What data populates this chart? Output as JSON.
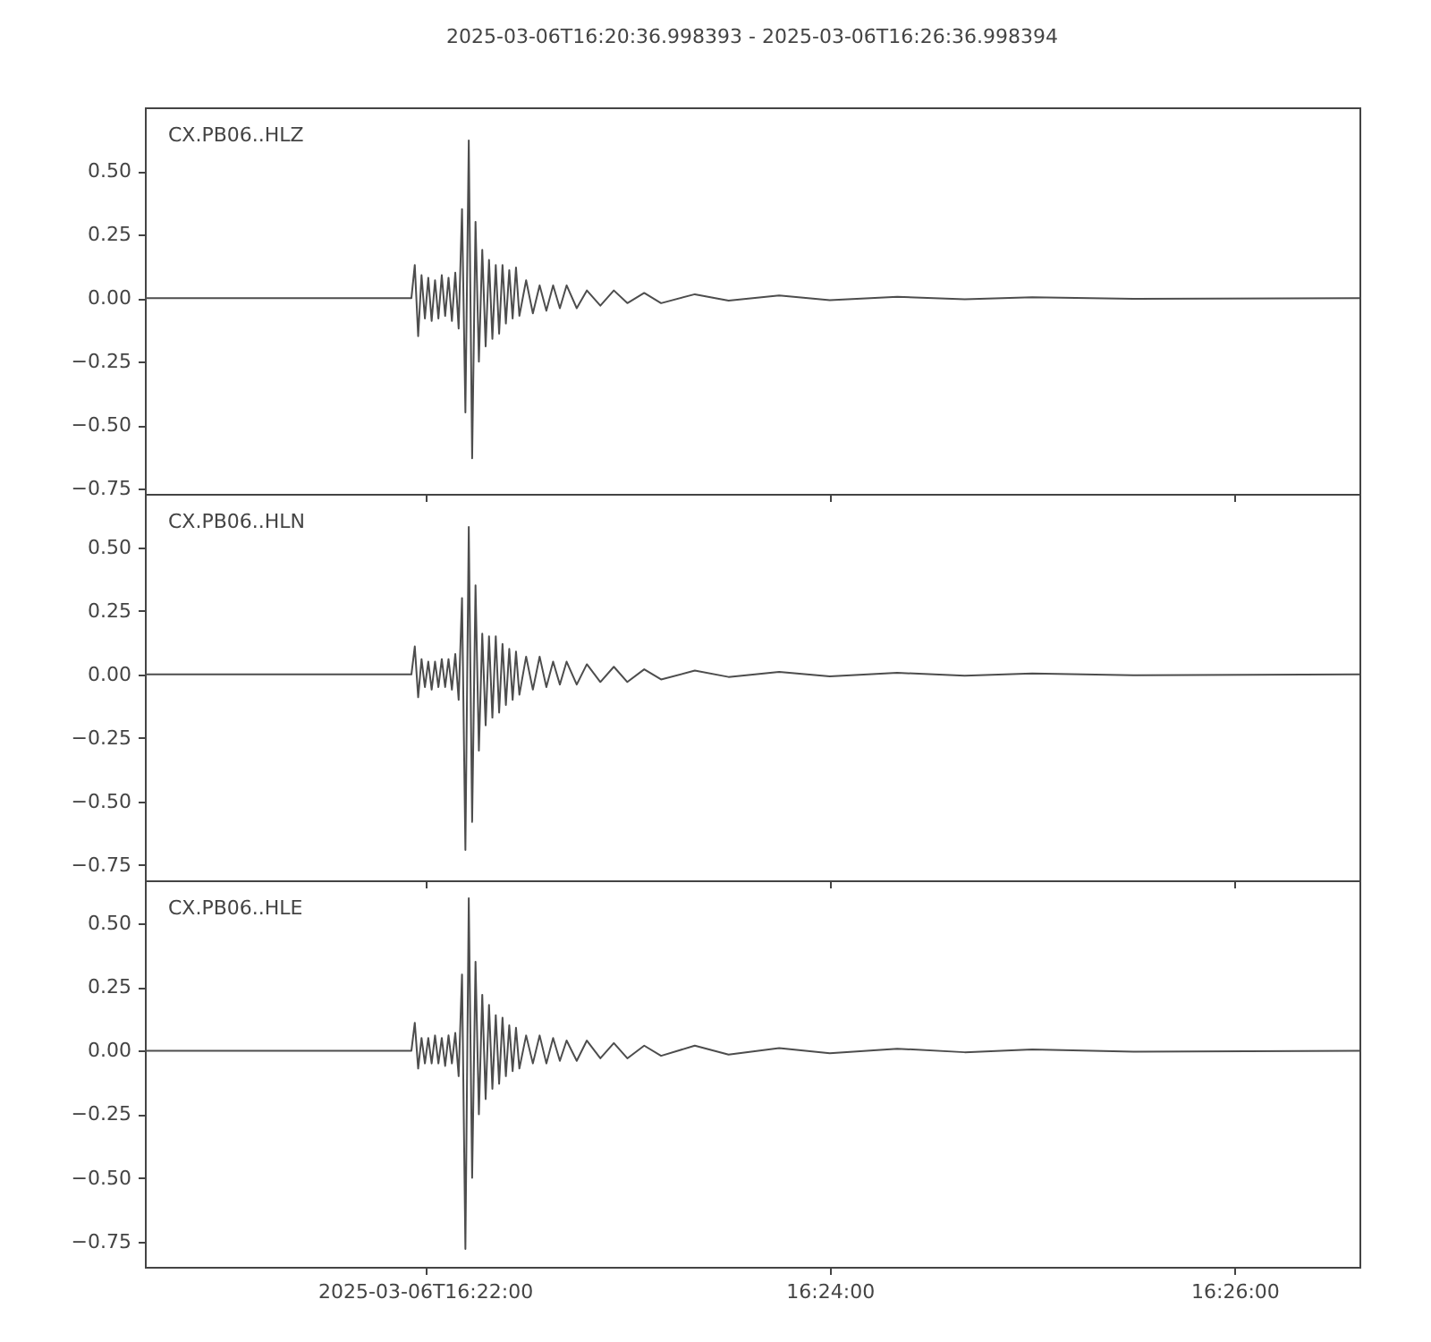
{
  "chart_data": [
    {
      "type": "line",
      "title": "2025-03-06T16:20:36.998393  -  2025-03-06T16:26:36.998394",
      "annotations": [
        "CX.PB06..HLZ"
      ],
      "color": "#4d4d4d",
      "tick_labels": "y",
      "xlim": [
        "2025-03-06T16:20:37",
        "2025-03-06T16:26:37"
      ],
      "xticks": [
        {
          "value": "2025-03-06T16:22:00",
          "label": null
        },
        {
          "value": "2025-03-06T16:24:00",
          "label": null
        },
        {
          "value": "2025-03-06T16:26:00",
          "label": null
        }
      ],
      "ylim": [
        -0.77,
        0.75
      ],
      "yticks": [
        {
          "value": -0.75,
          "label": "−0.75"
        },
        {
          "value": -0.5,
          "label": "−0.50"
        },
        {
          "value": -0.25,
          "label": "−0.25"
        },
        {
          "value": 0,
          "label": "0.00"
        },
        {
          "value": 0.25,
          "label": "0.25"
        },
        {
          "value": 0.5,
          "label": "0.50"
        }
      ],
      "x": [
        "2025-03-06T16:20:37",
        "2025-03-06T16:21:56",
        "2025-03-06T16:21:57",
        "2025-03-06T16:21:58",
        "2025-03-06T16:21:59",
        "2025-03-06T16:22:00",
        "2025-03-06T16:22:01",
        "2025-03-06T16:22:02",
        "2025-03-06T16:22:03",
        "2025-03-06T16:22:04",
        "2025-03-06T16:22:05",
        "2025-03-06T16:22:06",
        "2025-03-06T16:22:07",
        "2025-03-06T16:22:08",
        "2025-03-06T16:22:09",
        "2025-03-06T16:22:10",
        "2025-03-06T16:22:11",
        "2025-03-06T16:22:12",
        "2025-03-06T16:22:13",
        "2025-03-06T16:22:14",
        "2025-03-06T16:22:15",
        "2025-03-06T16:22:16",
        "2025-03-06T16:22:17",
        "2025-03-06T16:22:18",
        "2025-03-06T16:22:19",
        "2025-03-06T16:22:20",
        "2025-03-06T16:22:21",
        "2025-03-06T16:22:22",
        "2025-03-06T16:22:23",
        "2025-03-06T16:22:24",
        "2025-03-06T16:22:25",
        "2025-03-06T16:22:26",
        "2025-03-06T16:22:27",
        "2025-03-06T16:22:28",
        "2025-03-06T16:22:30",
        "2025-03-06T16:22:32",
        "2025-03-06T16:22:34",
        "2025-03-06T16:22:36",
        "2025-03-06T16:22:38",
        "2025-03-06T16:22:40",
        "2025-03-06T16:22:42",
        "2025-03-06T16:22:45",
        "2025-03-06T16:22:48",
        "2025-03-06T16:22:52",
        "2025-03-06T16:22:56",
        "2025-03-06T16:23:00",
        "2025-03-06T16:23:05",
        "2025-03-06T16:23:10",
        "2025-03-06T16:23:20",
        "2025-03-06T16:23:30",
        "2025-03-06T16:23:45",
        "2025-03-06T16:24:00",
        "2025-03-06T16:24:20",
        "2025-03-06T16:24:40",
        "2025-03-06T16:25:00",
        "2025-03-06T16:25:30",
        "2025-03-06T16:26:37"
      ],
      "values": [
        0,
        0,
        0.13,
        -0.15,
        0.09,
        -0.08,
        0.08,
        -0.09,
        0.07,
        -0.08,
        0.09,
        -0.07,
        0.08,
        -0.09,
        0.1,
        -0.12,
        0.35,
        -0.45,
        0.62,
        -0.63,
        0.3,
        -0.25,
        0.19,
        -0.19,
        0.15,
        -0.16,
        0.13,
        -0.14,
        0.13,
        -0.1,
        0.11,
        -0.08,
        0.12,
        -0.07,
        0.07,
        -0.06,
        0.05,
        -0.05,
        0.05,
        -0.04,
        0.05,
        -0.04,
        0.03,
        -0.03,
        0.03,
        -0.02,
        0.02,
        -0.02,
        0.015,
        -0.01,
        0.01,
        -0.008,
        0.005,
        -0.005,
        0.003,
        -0.003,
        0
      ]
    },
    {
      "type": "line",
      "annotations": [
        "CX.PB06..HLN"
      ],
      "color": "#4d4d4d",
      "tick_labels": "y",
      "xlim": [
        "2025-03-06T16:20:37",
        "2025-03-06T16:26:37"
      ],
      "xticks": [
        {
          "value": "2025-03-06T16:22:00",
          "label": null
        },
        {
          "value": "2025-03-06T16:24:00",
          "label": null
        },
        {
          "value": "2025-03-06T16:26:00",
          "label": null
        }
      ],
      "ylim": [
        -0.81,
        0.71
      ],
      "yticks": [
        {
          "value": -0.75,
          "label": "−0.75"
        },
        {
          "value": -0.5,
          "label": "−0.50"
        },
        {
          "value": -0.25,
          "label": "−0.25"
        },
        {
          "value": 0,
          "label": "0.00"
        },
        {
          "value": 0.25,
          "label": "0.25"
        },
        {
          "value": 0.5,
          "label": "0.50"
        }
      ],
      "x": [
        "2025-03-06T16:20:37",
        "2025-03-06T16:21:56",
        "2025-03-06T16:21:57",
        "2025-03-06T16:21:58",
        "2025-03-06T16:21:59",
        "2025-03-06T16:22:00",
        "2025-03-06T16:22:01",
        "2025-03-06T16:22:02",
        "2025-03-06T16:22:03",
        "2025-03-06T16:22:04",
        "2025-03-06T16:22:05",
        "2025-03-06T16:22:06",
        "2025-03-06T16:22:07",
        "2025-03-06T16:22:08",
        "2025-03-06T16:22:09",
        "2025-03-06T16:22:10",
        "2025-03-06T16:22:11",
        "2025-03-06T16:22:12",
        "2025-03-06T16:22:13",
        "2025-03-06T16:22:14",
        "2025-03-06T16:22:15",
        "2025-03-06T16:22:16",
        "2025-03-06T16:22:17",
        "2025-03-06T16:22:18",
        "2025-03-06T16:22:19",
        "2025-03-06T16:22:20",
        "2025-03-06T16:22:21",
        "2025-03-06T16:22:22",
        "2025-03-06T16:22:23",
        "2025-03-06T16:22:24",
        "2025-03-06T16:22:25",
        "2025-03-06T16:22:26",
        "2025-03-06T16:22:27",
        "2025-03-06T16:22:28",
        "2025-03-06T16:22:30",
        "2025-03-06T16:22:32",
        "2025-03-06T16:22:34",
        "2025-03-06T16:22:36",
        "2025-03-06T16:22:38",
        "2025-03-06T16:22:40",
        "2025-03-06T16:22:42",
        "2025-03-06T16:22:45",
        "2025-03-06T16:22:48",
        "2025-03-06T16:22:52",
        "2025-03-06T16:22:56",
        "2025-03-06T16:23:00",
        "2025-03-06T16:23:05",
        "2025-03-06T16:23:10",
        "2025-03-06T16:23:20",
        "2025-03-06T16:23:30",
        "2025-03-06T16:23:45",
        "2025-03-06T16:24:00",
        "2025-03-06T16:24:20",
        "2025-03-06T16:24:40",
        "2025-03-06T16:25:00",
        "2025-03-06T16:25:30",
        "2025-03-06T16:26:37"
      ],
      "values": [
        0,
        0,
        0.11,
        -0.09,
        0.06,
        -0.05,
        0.05,
        -0.06,
        0.05,
        -0.05,
        0.06,
        -0.05,
        0.06,
        -0.06,
        0.08,
        -0.1,
        0.3,
        -0.69,
        0.58,
        -0.58,
        0.35,
        -0.3,
        0.16,
        -0.2,
        0.15,
        -0.17,
        0.15,
        -0.15,
        0.12,
        -0.12,
        0.1,
        -0.1,
        0.09,
        -0.08,
        0.07,
        -0.06,
        0.07,
        -0.05,
        0.05,
        -0.04,
        0.05,
        -0.04,
        0.04,
        -0.03,
        0.03,
        -0.03,
        0.02,
        -0.02,
        0.015,
        -0.01,
        0.01,
        -0.008,
        0.006,
        -0.005,
        0.004,
        -0.003,
        0
      ]
    },
    {
      "type": "line",
      "annotations": [
        "CX.PB06..HLE"
      ],
      "color": "#4d4d4d",
      "xlim": [
        "2025-03-06T16:20:37",
        "2025-03-06T16:26:37"
      ],
      "xticks": [
        {
          "value": "2025-03-06T16:22:00",
          "label": "2025-03-06T16:22:00"
        },
        {
          "value": "2025-03-06T16:24:00",
          "label": "16:24:00"
        },
        {
          "value": "2025-03-06T16:26:00",
          "label": "16:26:00"
        }
      ],
      "ylim": [
        -0.85,
        0.67
      ],
      "yticks": [
        {
          "value": -0.75,
          "label": "−0.75"
        },
        {
          "value": -0.5,
          "label": "−0.50"
        },
        {
          "value": -0.25,
          "label": "−0.25"
        },
        {
          "value": 0,
          "label": "0.00"
        },
        {
          "value": 0.25,
          "label": "0.25"
        },
        {
          "value": 0.5,
          "label": "0.50"
        }
      ],
      "x": [
        "2025-03-06T16:20:37",
        "2025-03-06T16:21:56",
        "2025-03-06T16:21:57",
        "2025-03-06T16:21:58",
        "2025-03-06T16:21:59",
        "2025-03-06T16:22:00",
        "2025-03-06T16:22:01",
        "2025-03-06T16:22:02",
        "2025-03-06T16:22:03",
        "2025-03-06T16:22:04",
        "2025-03-06T16:22:05",
        "2025-03-06T16:22:06",
        "2025-03-06T16:22:07",
        "2025-03-06T16:22:08",
        "2025-03-06T16:22:09",
        "2025-03-06T16:22:10",
        "2025-03-06T16:22:11",
        "2025-03-06T16:22:12",
        "2025-03-06T16:22:13",
        "2025-03-06T16:22:14",
        "2025-03-06T16:22:15",
        "2025-03-06T16:22:16",
        "2025-03-06T16:22:17",
        "2025-03-06T16:22:18",
        "2025-03-06T16:22:19",
        "2025-03-06T16:22:20",
        "2025-03-06T16:22:21",
        "2025-03-06T16:22:22",
        "2025-03-06T16:22:23",
        "2025-03-06T16:22:24",
        "2025-03-06T16:22:25",
        "2025-03-06T16:22:26",
        "2025-03-06T16:22:27",
        "2025-03-06T16:22:28",
        "2025-03-06T16:22:30",
        "2025-03-06T16:22:32",
        "2025-03-06T16:22:34",
        "2025-03-06T16:22:36",
        "2025-03-06T16:22:38",
        "2025-03-06T16:22:40",
        "2025-03-06T16:22:42",
        "2025-03-06T16:22:45",
        "2025-03-06T16:22:48",
        "2025-03-06T16:22:52",
        "2025-03-06T16:22:56",
        "2025-03-06T16:23:00",
        "2025-03-06T16:23:05",
        "2025-03-06T16:23:10",
        "2025-03-06T16:23:20",
        "2025-03-06T16:23:30",
        "2025-03-06T16:23:45",
        "2025-03-06T16:24:00",
        "2025-03-06T16:24:20",
        "2025-03-06T16:24:40",
        "2025-03-06T16:25:00",
        "2025-03-06T16:25:30",
        "2025-03-06T16:26:37"
      ],
      "values": [
        0,
        0,
        0.11,
        -0.07,
        0.05,
        -0.05,
        0.05,
        -0.05,
        0.06,
        -0.05,
        0.05,
        -0.06,
        0.06,
        -0.05,
        0.07,
        -0.1,
        0.3,
        -0.78,
        0.6,
        -0.5,
        0.35,
        -0.25,
        0.22,
        -0.19,
        0.18,
        -0.15,
        0.14,
        -0.13,
        0.13,
        -0.1,
        0.1,
        -0.08,
        0.09,
        -0.07,
        0.06,
        -0.05,
        0.06,
        -0.05,
        0.05,
        -0.04,
        0.04,
        -0.04,
        0.04,
        -0.03,
        0.03,
        -0.03,
        0.02,
        -0.02,
        0.02,
        -0.015,
        0.01,
        -0.01,
        0.008,
        -0.006,
        0.005,
        -0.004,
        0
      ]
    }
  ]
}
